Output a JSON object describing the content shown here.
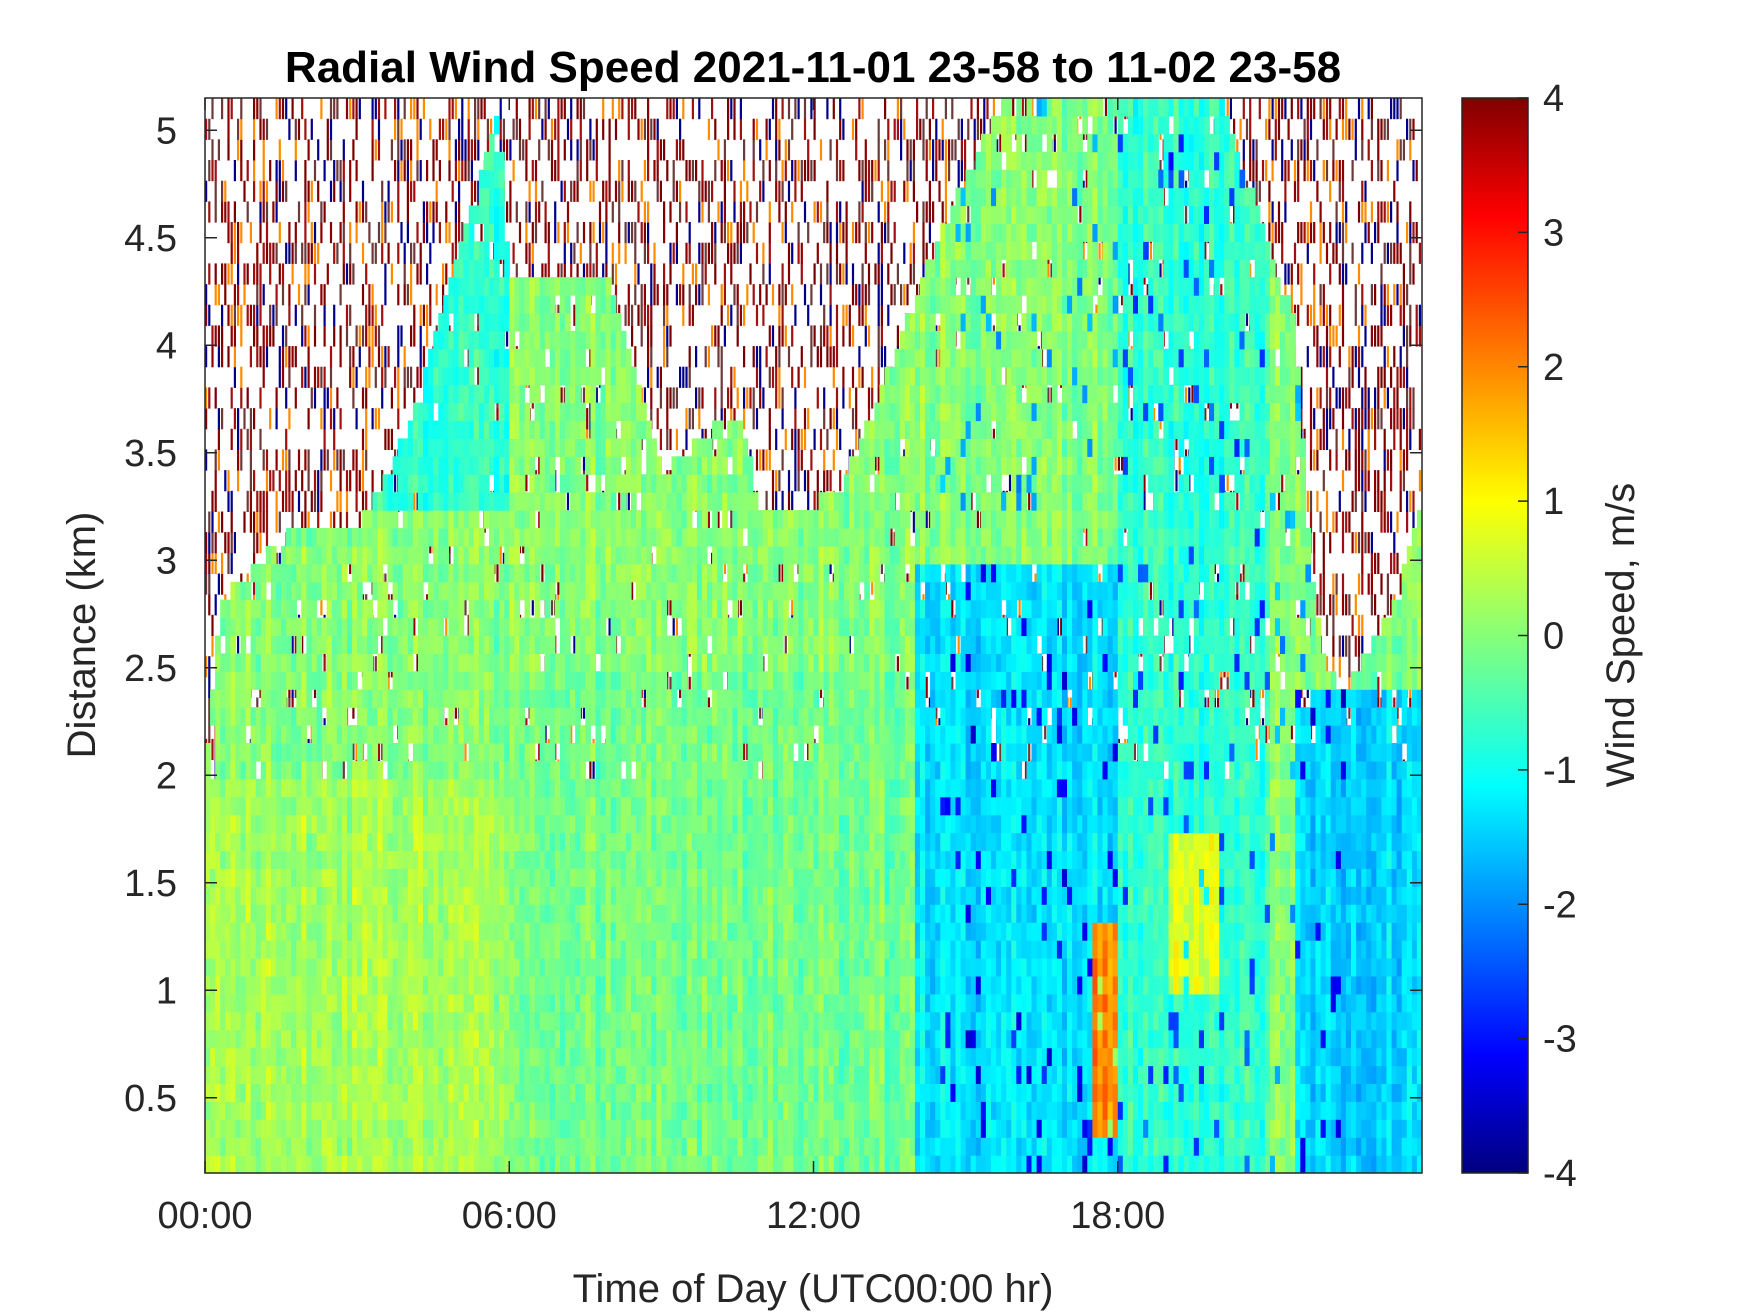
{
  "chart_data": {
    "type": "heatmap",
    "title": "Radial Wind Speed 2021-11-01 23-58 to 11-02 23-58",
    "xlabel": "Time of Day (UTC00:00 hr)",
    "ylabel": "Distance (km)",
    "colorbar_label": "Wind Speed, m/s",
    "colormap": "jet",
    "x_unit": "hours",
    "xlim": [
      0,
      24
    ],
    "ylim": [
      0.15,
      5.15
    ],
    "clim": [
      -4,
      4
    ],
    "x_ticks": [
      {
        "value": 0,
        "label": "00:00"
      },
      {
        "value": 6,
        "label": "06:00"
      },
      {
        "value": 12,
        "label": "12:00"
      },
      {
        "value": 18,
        "label": "18:00"
      }
    ],
    "y_ticks": [
      {
        "value": 0.5,
        "label": "0.5"
      },
      {
        "value": 1,
        "label": "1"
      },
      {
        "value": 1.5,
        "label": "1.5"
      },
      {
        "value": 2,
        "label": "2"
      },
      {
        "value": 2.5,
        "label": "2.5"
      },
      {
        "value": 3,
        "label": "3"
      },
      {
        "value": 3.5,
        "label": "3.5"
      },
      {
        "value": 4,
        "label": "4"
      },
      {
        "value": 4.5,
        "label": "4.5"
      },
      {
        "value": 5,
        "label": "5"
      }
    ],
    "c_ticks": [
      {
        "value": 4,
        "label": "4"
      },
      {
        "value": 3,
        "label": "3"
      },
      {
        "value": 2,
        "label": "2"
      },
      {
        "value": 1,
        "label": "1"
      },
      {
        "value": 0,
        "label": "0"
      },
      {
        "value": -1,
        "label": "-1"
      },
      {
        "value": -2,
        "label": "-2"
      },
      {
        "value": -3,
        "label": "-3"
      },
      {
        "value": -4,
        "label": "-4"
      }
    ],
    "noise_top_boundary_km": [
      [
        0,
        1.98
      ],
      [
        3.0,
        1.98
      ],
      [
        5.0,
        1.98
      ],
      [
        6.4,
        1.7
      ],
      [
        7.6,
        1.65
      ],
      [
        10.0,
        1.85
      ],
      [
        12.0,
        1.85
      ]
    ],
    "valid_envelope_km": [
      [
        0,
        1.98
      ],
      [
        0.3,
        2.8
      ],
      [
        1.5,
        3.1
      ],
      [
        3.2,
        3.2
      ],
      [
        4.0,
        3.6
      ],
      [
        5.8,
        5.15
      ],
      [
        6.0,
        4.3
      ],
      [
        8.0,
        4.3
      ],
      [
        9.0,
        3.4
      ],
      [
        10.5,
        3.7
      ],
      [
        11.0,
        3.2
      ],
      [
        12.5,
        3.3
      ],
      [
        13.5,
        3.9
      ],
      [
        14.8,
        4.7
      ],
      [
        15.8,
        5.15
      ],
      [
        20.0,
        5.15
      ],
      [
        21.5,
        4.1
      ],
      [
        21.8,
        3.0
      ],
      [
        22.1,
        2.5
      ],
      [
        22.5,
        2.4
      ],
      [
        23.5,
        2.8
      ],
      [
        24,
        3.3
      ]
    ],
    "low_level_regions": [
      {
        "x_range": [
          0,
          6
        ],
        "y_range": [
          0.15,
          1.98
        ],
        "mean_speed": 0.3
      },
      {
        "x_range": [
          6,
          7.5
        ],
        "y_range": [
          0.15,
          0.9
        ],
        "mean_speed": -0.7
      },
      {
        "x_range": [
          6,
          14.5
        ],
        "y_range": [
          0.15,
          2.5
        ],
        "mean_speed": -0.1
      },
      {
        "x_range": [
          14,
          18
        ],
        "y_range": [
          0.15,
          3.0
        ],
        "mean_speed": -1.2
      },
      {
        "x_range": [
          17.5,
          18
        ],
        "y_range": [
          0.3,
          1.3
        ],
        "mean_speed": 2.0
      },
      {
        "x_range": [
          18,
          21
        ],
        "y_range": [
          0.15,
          5.15
        ],
        "mean_speed": -0.6
      },
      {
        "x_range": [
          19,
          20
        ],
        "y_range": [
          1.0,
          1.7
        ],
        "mean_speed": 0.8
      },
      {
        "x_range": [
          21.5,
          24
        ],
        "y_range": [
          0.15,
          2.4
        ],
        "mean_speed": -1.3
      }
    ],
    "upper_plume": {
      "x_range": [
        3.2,
        6.0
      ],
      "y_range": [
        3.2,
        5.15
      ],
      "mean_speed": -0.6
    }
  }
}
